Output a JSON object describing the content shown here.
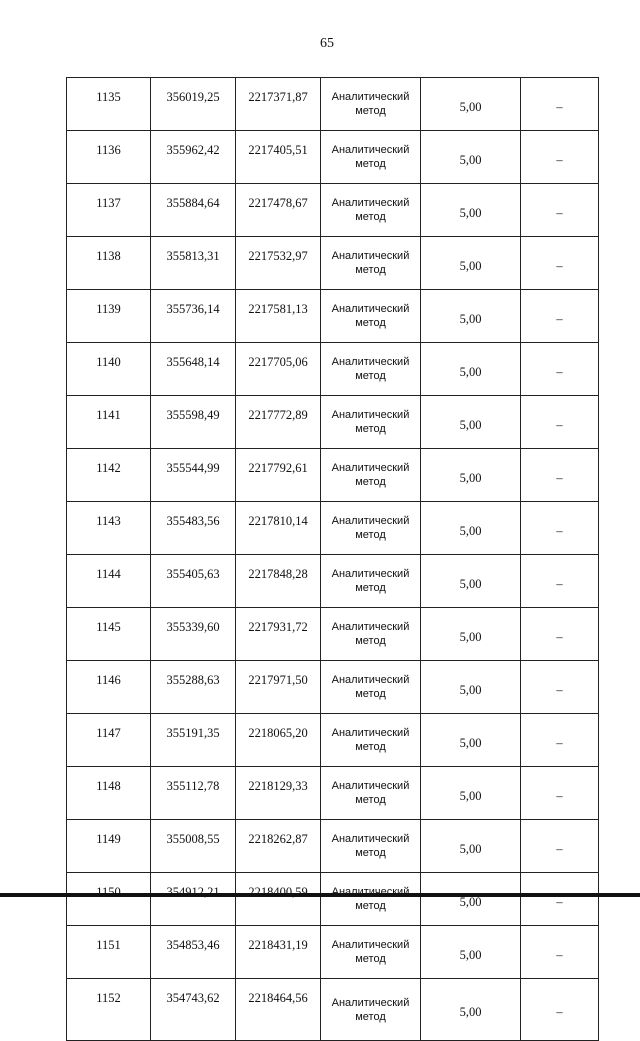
{
  "page_number": "65",
  "rows": [
    {
      "n": "1135",
      "x": "356019,25",
      "y": "2217371,87",
      "method": "Аналитический метод",
      "error": "5,00",
      "note": "–"
    },
    {
      "n": "1136",
      "x": "355962,42",
      "y": "2217405,51",
      "method": "Аналитический метод",
      "error": "5,00",
      "note": "–"
    },
    {
      "n": "1137",
      "x": "355884,64",
      "y": "2217478,67",
      "method": "Аналитический метод",
      "error": "5,00",
      "note": "–"
    },
    {
      "n": "1138",
      "x": "355813,31",
      "y": "2217532,97",
      "method": "Аналитический метод",
      "error": "5,00",
      "note": "–"
    },
    {
      "n": "1139",
      "x": "355736,14",
      "y": "2217581,13",
      "method": "Аналитический метод",
      "error": "5,00",
      "note": "–"
    },
    {
      "n": "1140",
      "x": "355648,14",
      "y": "2217705,06",
      "method": "Аналитический метод",
      "error": "5,00",
      "note": "–"
    },
    {
      "n": "1141",
      "x": "355598,49",
      "y": "2217772,89",
      "method": "Аналитический метод",
      "error": "5,00",
      "note": "–"
    },
    {
      "n": "1142",
      "x": "355544,99",
      "y": "2217792,61",
      "method": "Аналитический метод",
      "error": "5,00",
      "note": "–"
    },
    {
      "n": "1143",
      "x": "355483,56",
      "y": "2217810,14",
      "method": "Аналитический метод",
      "error": "5,00",
      "note": "–"
    },
    {
      "n": "1144",
      "x": "355405,63",
      "y": "2217848,28",
      "method": "Аналитический метод",
      "error": "5,00",
      "note": "–"
    },
    {
      "n": "1145",
      "x": "355339,60",
      "y": "2217931,72",
      "method": "Аналитический метод",
      "error": "5,00",
      "note": "–"
    },
    {
      "n": "1146",
      "x": "355288,63",
      "y": "2217971,50",
      "method": "Аналитический метод",
      "error": "5,00",
      "note": "–"
    },
    {
      "n": "1147",
      "x": "355191,35",
      "y": "2218065,20",
      "method": "Аналитический метод",
      "error": "5,00",
      "note": "–"
    },
    {
      "n": "1148",
      "x": "355112,78",
      "y": "2218129,33",
      "method": "Аналитический метод",
      "error": "5,00",
      "note": "–"
    },
    {
      "n": "1149",
      "x": "355008,55",
      "y": "2218262,87",
      "method": "Аналитический метод",
      "error": "5,00",
      "note": "–"
    },
    {
      "n": "1150",
      "x": "354912,21",
      "y": "2218400,59",
      "method": "Аналитический метод",
      "error": "5,00",
      "note": "–"
    },
    {
      "n": "1151",
      "x": "354853,46",
      "y": "2218431,19",
      "method": "Аналитический метод",
      "error": "5,00",
      "note": "–"
    },
    {
      "n": "1152",
      "x": "354743,62",
      "y": "2218464,56",
      "method": "Аналитический метод",
      "error": "5,00",
      "note": "–"
    }
  ]
}
